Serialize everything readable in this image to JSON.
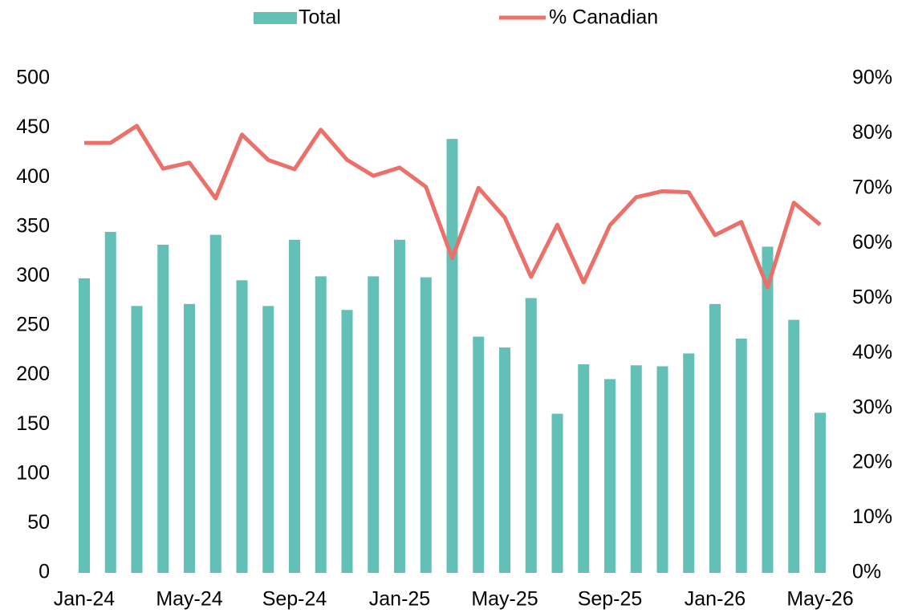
{
  "chart_data": {
    "type": "bar_line",
    "categories": [
      "Jan-24",
      null,
      null,
      null,
      "May-24",
      null,
      null,
      null,
      "Sep-24",
      null,
      null,
      null,
      "Jan-25",
      null,
      null,
      null,
      "May-25",
      null,
      null,
      null,
      "Sep-25",
      null,
      null,
      null,
      "Jan-26",
      null,
      null,
      null,
      "May-26"
    ],
    "series": [
      {
        "name": "Total",
        "type": "bar",
        "color": "#62c0b6",
        "values": [
          298,
          345,
          270,
          332,
          272,
          342,
          296,
          270,
          337,
          300,
          266,
          300,
          337,
          299,
          439,
          239,
          228,
          278,
          161,
          211,
          196,
          210,
          209,
          222,
          272,
          237,
          330,
          256,
          162
        ]
      },
      {
        "name": "% Canadian",
        "type": "line",
        "axis": "y2",
        "color": "#ec706a",
        "values": [
          78.3,
          78.3,
          81.4,
          73.6,
          74.7,
          68.2,
          79.8,
          75.2,
          73.5,
          80.7,
          75.2,
          72.3,
          73.8,
          70.3,
          57.3,
          70.1,
          64.7,
          53.9,
          63.4,
          52.9,
          63.3,
          68.4,
          69.5,
          69.3,
          61.5,
          63.9,
          52.0,
          67.4,
          63.4
        ]
      }
    ],
    "ylim": [
      0,
      500
    ],
    "yticks": [
      0,
      50,
      100,
      150,
      200,
      250,
      300,
      350,
      400,
      450,
      500
    ],
    "y2lim": [
      0,
      90
    ],
    "y2ticks": [
      {
        "value": 0,
        "label": "0%"
      },
      {
        "value": 10,
        "label": "10%"
      },
      {
        "value": 20,
        "label": "20%"
      },
      {
        "value": 30,
        "label": "30%"
      },
      {
        "value": 40,
        "label": "40%"
      },
      {
        "value": 50,
        "label": "50%"
      },
      {
        "value": 60,
        "label": "60%"
      },
      {
        "value": 70,
        "label": "70%"
      },
      {
        "value": 80,
        "label": "80%"
      },
      {
        "value": 90,
        "label": "90%"
      }
    ],
    "legend": "top",
    "grid": false
  }
}
